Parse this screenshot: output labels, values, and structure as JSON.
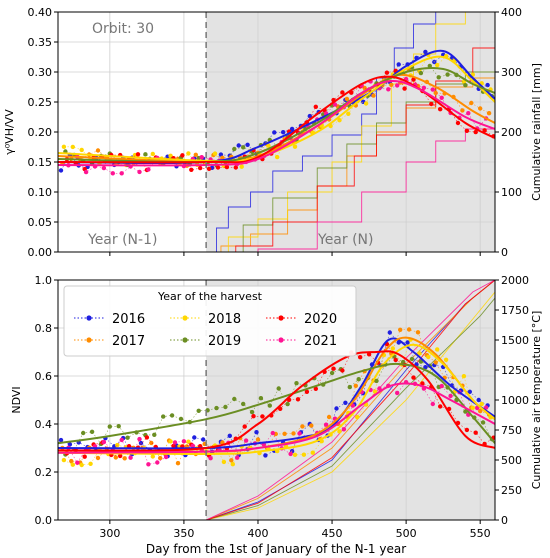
{
  "colors": {
    "2016": "#1f1fe0",
    "2017": "#ff8c00",
    "2018": "#ffd700",
    "2019": "#6b8e23",
    "2020": "#ff0000",
    "2021": "#ff1493",
    "shade": "#e3e3e3",
    "grid": "#ffffff",
    "divider": "#777777",
    "annotation": "#777777"
  },
  "xlabel": "Day from the 1st of January of the N-1 year",
  "chart_data": [
    {
      "type": "line",
      "panel": "top",
      "annotations": {
        "orbit": "Orbit: 30",
        "year_before": "Year (N-1)",
        "year_of": "Year (N)"
      },
      "xlim": [
        265,
        560
      ],
      "divider_x": 365,
      "xticks": [
        300,
        350,
        400,
        450,
        500,
        550
      ],
      "ylabel": "γ⁰VH/VV",
      "ylim": [
        0.0,
        0.4
      ],
      "yticks": [
        "0.00",
        "0.05",
        "0.10",
        "0.15",
        "0.20",
        "0.25",
        "0.30",
        "0.35",
        "0.40"
      ],
      "y2label": "Cumulative rainfall [mm]",
      "y2lim": [
        0,
        400
      ],
      "y2ticks": [
        "0",
        "100",
        "200",
        "300",
        "400"
      ],
      "series_fit": [
        {
          "name": "2016",
          "x": [
            265,
            365,
            400,
            450,
            480,
            500,
            525,
            545,
            560
          ],
          "y": [
            0.15,
            0.15,
            0.175,
            0.232,
            0.272,
            0.31,
            0.335,
            0.29,
            0.255
          ]
        },
        {
          "name": "2017",
          "x": [
            265,
            365,
            400,
            440,
            470,
            495,
            520,
            545,
            560
          ],
          "y": [
            0.16,
            0.15,
            0.16,
            0.21,
            0.262,
            0.295,
            0.275,
            0.235,
            0.215
          ]
        },
        {
          "name": "2018",
          "x": [
            265,
            365,
            400,
            440,
            470,
            500,
            525,
            545,
            560
          ],
          "y": [
            0.165,
            0.152,
            0.158,
            0.2,
            0.255,
            0.305,
            0.325,
            0.285,
            0.25
          ]
        },
        {
          "name": "2019",
          "x": [
            265,
            365,
            400,
            440,
            470,
            500,
            525,
            545,
            560
          ],
          "y": [
            0.155,
            0.15,
            0.165,
            0.215,
            0.265,
            0.3,
            0.305,
            0.28,
            0.265
          ]
        },
        {
          "name": "2020",
          "x": [
            265,
            365,
            400,
            440,
            470,
            490,
            510,
            540,
            560
          ],
          "y": [
            0.15,
            0.15,
            0.158,
            0.23,
            0.28,
            0.292,
            0.27,
            0.215,
            0.19
          ]
        },
        {
          "name": "2021",
          "x": [
            265,
            365,
            400,
            440,
            470,
            490,
            510,
            540,
            560
          ],
          "y": [
            0.145,
            0.145,
            0.155,
            0.21,
            0.265,
            0.285,
            0.27,
            0.225,
            0.205
          ]
        }
      ],
      "rainfall": [
        {
          "name": "2016",
          "x": [
            365,
            372,
            380,
            395,
            410,
            430,
            450,
            470,
            480,
            492,
            505,
            520
          ],
          "y": [
            0,
            40,
            75,
            100,
            135,
            160,
            195,
            230,
            290,
            340,
            380,
            400
          ]
        },
        {
          "name": "2017",
          "x": [
            365,
            375,
            395,
            420,
            440,
            460,
            480,
            500,
            520,
            545,
            560
          ],
          "y": [
            0,
            10,
            30,
            70,
            110,
            160,
            200,
            240,
            275,
            290,
            290
          ]
        },
        {
          "name": "2018",
          "x": [
            365,
            380,
            400,
            420,
            450,
            470,
            490,
            505,
            520,
            540,
            560
          ],
          "y": [
            0,
            25,
            55,
            100,
            150,
            210,
            280,
            330,
            380,
            400,
            400
          ]
        },
        {
          "name": "2019",
          "x": [
            365,
            390,
            410,
            440,
            460,
            480,
            500,
            520,
            540,
            560
          ],
          "y": [
            0,
            45,
            90,
            140,
            180,
            215,
            250,
            280,
            300,
            315
          ]
        },
        {
          "name": "2020",
          "x": [
            365,
            385,
            410,
            440,
            465,
            480,
            500,
            520,
            545,
            560
          ],
          "y": [
            0,
            10,
            50,
            110,
            160,
            195,
            245,
            285,
            340,
            340
          ]
        },
        {
          "name": "2021",
          "x": [
            365,
            400,
            440,
            470,
            500,
            520,
            540,
            560
          ],
          "y": [
            0,
            5,
            50,
            100,
            150,
            185,
            205,
            215
          ]
        }
      ]
    },
    {
      "type": "line",
      "panel": "bottom",
      "legend_title": "Year of the harvest",
      "legend_entries": [
        "2016",
        "2017",
        "2018",
        "2019",
        "2020",
        "2021"
      ],
      "legend_placement": "top-left",
      "xlim": [
        265,
        560
      ],
      "divider_x": 365,
      "xticks": [
        "300",
        "350",
        "400",
        "450",
        "500",
        "550"
      ],
      "ylabel": "NDVI",
      "ylim": [
        0.0,
        1.0
      ],
      "yticks": [
        "0.0",
        "0.2",
        "0.4",
        "0.6",
        "0.8",
        "1.0"
      ],
      "y2label": "Cumulative air temperature [°C]",
      "y2lim": [
        0,
        2000
      ],
      "y2ticks": [
        "0",
        "250",
        "500",
        "750",
        "1000",
        "1250",
        "1500",
        "1750",
        "2000"
      ],
      "series_fit": [
        {
          "name": "2016",
          "x": [
            265,
            365,
            400,
            430,
            450,
            470,
            488,
            505,
            530,
            560
          ],
          "y": [
            0.3,
            0.3,
            0.32,
            0.345,
            0.39,
            0.56,
            0.75,
            0.7,
            0.56,
            0.43
          ]
        },
        {
          "name": "2017",
          "x": [
            265,
            365,
            400,
            440,
            465,
            485,
            500,
            520,
            545,
            560
          ],
          "y": [
            0.29,
            0.285,
            0.3,
            0.36,
            0.5,
            0.7,
            0.76,
            0.69,
            0.5,
            0.42
          ]
        },
        {
          "name": "2018",
          "x": [
            265,
            365,
            400,
            440,
            465,
            485,
            505,
            525,
            545,
            560
          ],
          "y": [
            0.28,
            0.275,
            0.285,
            0.33,
            0.45,
            0.65,
            0.73,
            0.65,
            0.5,
            0.42
          ]
        },
        {
          "name": "2019",
          "x": [
            265,
            300,
            365,
            400,
            440,
            470,
            495,
            520,
            545,
            560
          ],
          "y": [
            0.32,
            0.35,
            0.42,
            0.48,
            0.56,
            0.62,
            0.65,
            0.6,
            0.43,
            0.32
          ]
        },
        {
          "name": "2020",
          "x": [
            265,
            365,
            400,
            430,
            460,
            480,
            495,
            515,
            540,
            560
          ],
          "y": [
            0.29,
            0.3,
            0.4,
            0.56,
            0.68,
            0.7,
            0.69,
            0.58,
            0.35,
            0.3
          ]
        },
        {
          "name": "2021",
          "x": [
            265,
            365,
            400,
            440,
            470,
            490,
            510,
            530,
            560
          ],
          "y": [
            0.28,
            0.285,
            0.3,
            0.35,
            0.48,
            0.56,
            0.56,
            0.5,
            0.4
          ]
        }
      ],
      "temperature": [
        {
          "name": "2016",
          "x": [
            365,
            400,
            450,
            500,
            540,
            560
          ],
          "y": [
            0,
            150,
            500,
            1250,
            1800,
            2000
          ]
        },
        {
          "name": "2017",
          "x": [
            365,
            400,
            450,
            500,
            545,
            560
          ],
          "y": [
            0,
            180,
            600,
            1300,
            1850,
            2000
          ]
        },
        {
          "name": "2018",
          "x": [
            365,
            400,
            450,
            500,
            550,
            560
          ],
          "y": [
            0,
            100,
            400,
            1000,
            1750,
            1900
          ]
        },
        {
          "name": "2019",
          "x": [
            365,
            400,
            450,
            500,
            550,
            560
          ],
          "y": [
            0,
            120,
            450,
            1100,
            1700,
            1850
          ]
        },
        {
          "name": "2020",
          "x": [
            365,
            400,
            450,
            500,
            540,
            560
          ],
          "y": [
            0,
            140,
            520,
            1200,
            1800,
            2000
          ]
        },
        {
          "name": "2021",
          "x": [
            365,
            400,
            450,
            500,
            545,
            560
          ],
          "y": [
            0,
            200,
            650,
            1350,
            1900,
            2000
          ]
        }
      ]
    }
  ]
}
